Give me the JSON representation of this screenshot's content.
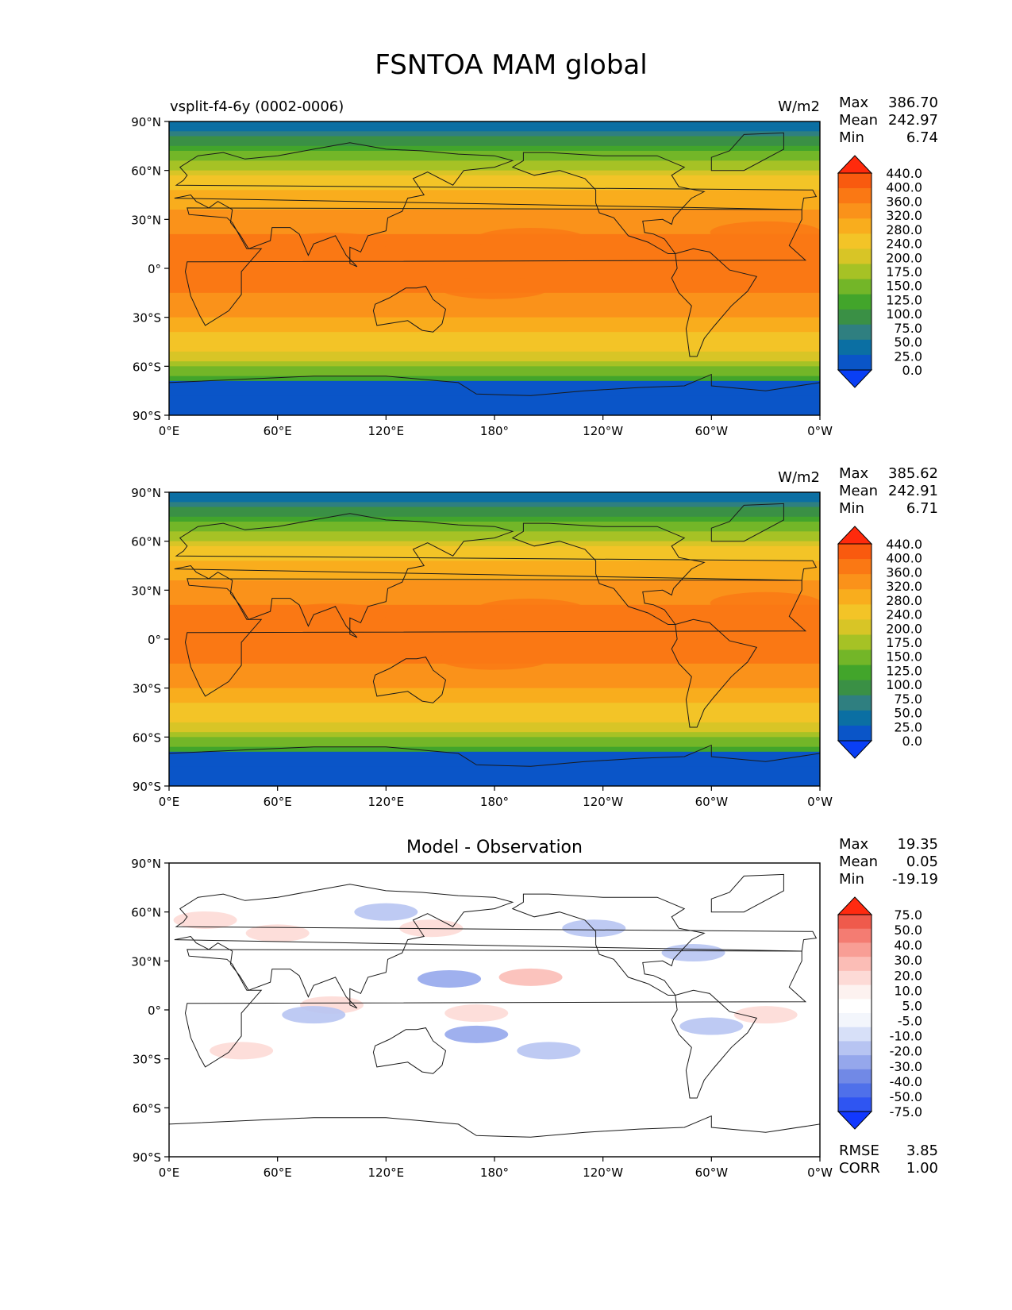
{
  "title": "FSNTOA MAM global",
  "colors": {
    "seq": [
      "#0a3ff5",
      "#0a55c8",
      "#0b6fa3",
      "#2f7f80",
      "#3a9045",
      "#42a52b",
      "#73b628",
      "#a6c225",
      "#d8c526",
      "#f3c427",
      "#f9ad1d",
      "#fa921a",
      "#fa7814",
      "#f95a0f",
      "#ff2a0c"
    ],
    "div": [
      "#1238ff",
      "#2f55f2",
      "#4f70ea",
      "#7189e6",
      "#95a7ec",
      "#b7c4f2",
      "#d7e0f8",
      "#f3f6fc",
      "#ffffff",
      "#fdf2f0",
      "#fddad6",
      "#fbbdb6",
      "#f89e95",
      "#f47c72",
      "#ef5a4c",
      "#ff2a10"
    ]
  },
  "panels": [
    {
      "kind": "model",
      "case_label": "vsplit-f4-6y (0002-0006)",
      "subtitle": "",
      "units": "W/m2",
      "stats": [
        {
          "label": "Max",
          "value": "386.70"
        },
        {
          "label": "Mean",
          "value": "242.97"
        },
        {
          "label": "Min",
          "value": "6.74"
        }
      ],
      "colorbar": {
        "palette": "seq",
        "ticks": [
          "440.0",
          "400.0",
          "360.0",
          "320.0",
          "280.0",
          "240.0",
          "200.0",
          "175.0",
          "150.0",
          "125.0",
          "100.0",
          "75.0",
          "50.0",
          "25.0",
          "0.0"
        ]
      },
      "footer": []
    },
    {
      "kind": "obs",
      "case_label": "",
      "subtitle": "",
      "units": "W/m2",
      "stats": [
        {
          "label": "Max",
          "value": "385.62"
        },
        {
          "label": "Mean",
          "value": "242.91"
        },
        {
          "label": "Min",
          "value": "6.71"
        }
      ],
      "colorbar": {
        "palette": "seq",
        "ticks": [
          "440.0",
          "400.0",
          "360.0",
          "320.0",
          "280.0",
          "240.0",
          "200.0",
          "175.0",
          "150.0",
          "125.0",
          "100.0",
          "75.0",
          "50.0",
          "25.0",
          "0.0"
        ]
      },
      "footer": []
    },
    {
      "kind": "diff",
      "case_label": "",
      "subtitle": "Model - Observation",
      "units": "",
      "stats": [
        {
          "label": "Max",
          "value": "19.35"
        },
        {
          "label": "Mean",
          "value": "0.05"
        },
        {
          "label": "Min",
          "value": "-19.19"
        }
      ],
      "colorbar": {
        "palette": "div",
        "ticks": [
          "75.0",
          "50.0",
          "40.0",
          "30.0",
          "20.0",
          "10.0",
          "5.0",
          "-5.0",
          "-10.0",
          "-20.0",
          "-30.0",
          "-40.0",
          "-50.0",
          "-75.0"
        ]
      },
      "footer": [
        {
          "label": "RMSE",
          "value": "3.85"
        },
        {
          "label": "CORR",
          "value": "1.00"
        }
      ]
    }
  ],
  "axes": {
    "lat_ticks": [
      "90°N",
      "60°N",
      "30°N",
      "0°",
      "30°S",
      "60°S",
      "90°S"
    ],
    "lon_ticks": [
      "0°E",
      "60°E",
      "120°E",
      "180°",
      "120°W",
      "60°W",
      "0°W"
    ]
  }
}
